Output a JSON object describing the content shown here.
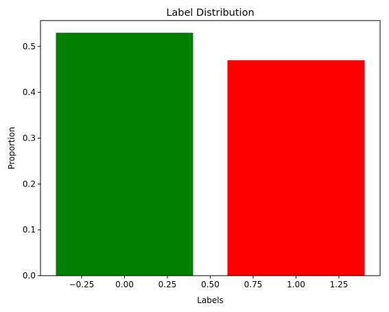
{
  "chart_data": {
    "type": "bar",
    "title": "Label Distribution",
    "xlabel": "Labels",
    "ylabel": "Proportion",
    "x": [
      0,
      1
    ],
    "values": [
      0.53,
      0.47
    ],
    "bar_width": 0.8,
    "colors": [
      "#008000",
      "#ff0000"
    ],
    "xlim": [
      -0.49,
      1.49
    ],
    "ylim": [
      0,
      0.5565
    ],
    "xticks": [
      -0.25,
      0.0,
      0.25,
      0.5,
      0.75,
      1.0,
      1.25
    ],
    "xtick_labels": [
      "−0.25",
      "0.00",
      "0.25",
      "0.50",
      "0.75",
      "1.00",
      "1.25"
    ],
    "yticks": [
      0.0,
      0.1,
      0.2,
      0.3,
      0.4,
      0.5
    ],
    "ytick_labels": [
      "0.0",
      "0.1",
      "0.2",
      "0.3",
      "0.4",
      "0.5"
    ],
    "grid": false,
    "legend": false
  }
}
